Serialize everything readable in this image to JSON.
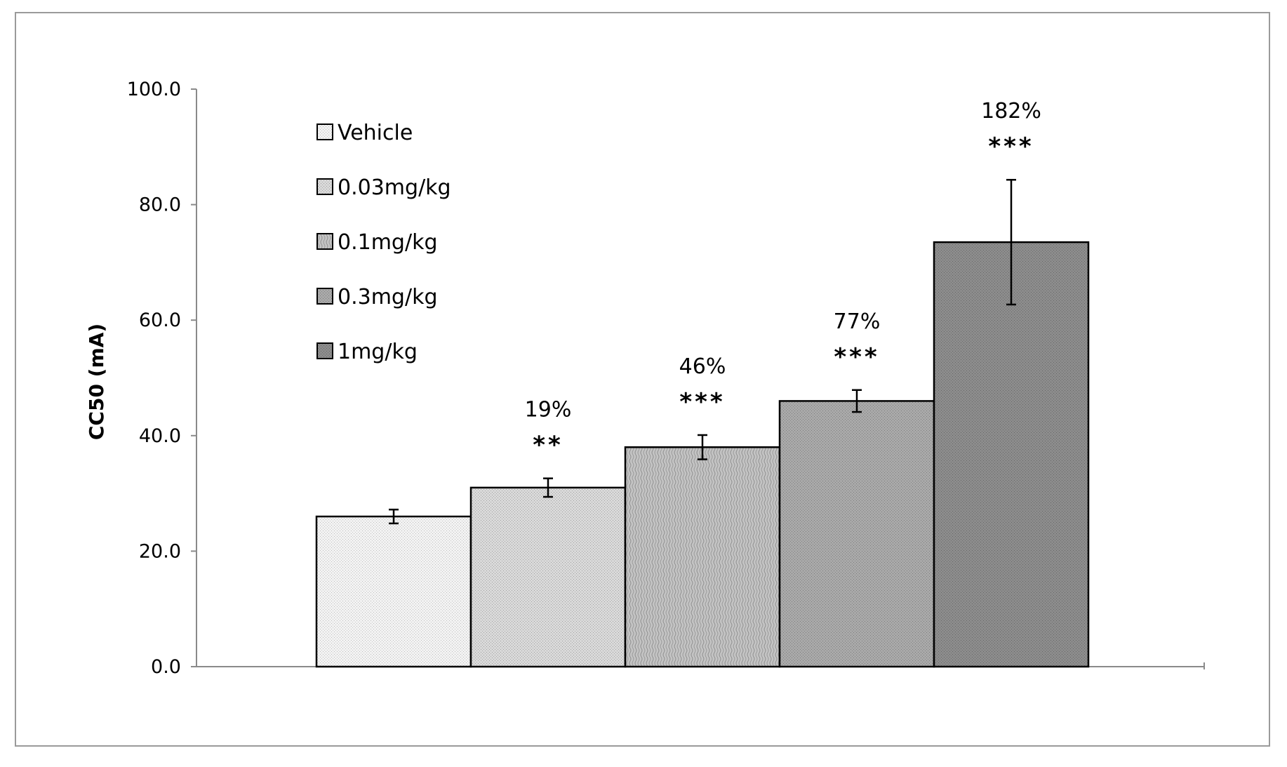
{
  "chart_data": {
    "type": "bar",
    "title": "",
    "xlabel": "",
    "ylabel": "CC50 (mA)",
    "ylim": [
      0,
      100
    ],
    "yticks": [
      "0.0",
      "20.0",
      "40.0",
      "60.0",
      "80.0",
      "100.0"
    ],
    "grid": false,
    "legend_position": "top-left",
    "categories": [
      "Vehicle",
      "0.03mg/kg",
      "0.1mg/kg",
      "0.3mg/kg",
      "1mg/kg"
    ],
    "values": [
      26.0,
      31.0,
      38.0,
      46.0,
      73.5
    ],
    "errors": [
      1.2,
      1.6,
      2.1,
      1.9,
      10.8
    ],
    "percent_labels": [
      "",
      "19%",
      "46%",
      "77%",
      "182%"
    ],
    "significance": [
      "",
      "**",
      "***",
      "***",
      "***"
    ],
    "legend": [
      "Vehicle",
      "0.03mg/kg",
      "0.1mg/kg",
      "0.3mg/kg",
      "1mg/kg"
    ],
    "colors": [
      "#eeeeee",
      "#d0d0d0",
      "#bababa",
      "#a0a0a0",
      "#868686"
    ]
  }
}
